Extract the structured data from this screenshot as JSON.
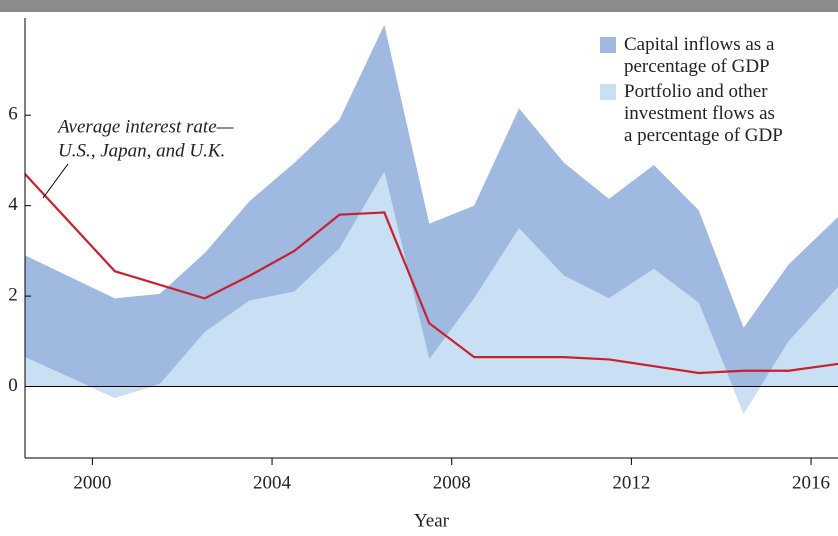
{
  "chart_data": {
    "type": "area",
    "x": [
      1998.5,
      2000.5,
      2001.5,
      2002.5,
      2003.5,
      2004.5,
      2005.5,
      2006.5,
      2007.5,
      2008.5,
      2009.5,
      2010.5,
      2011.5,
      2012.5,
      2013.5,
      2014.5,
      2015.5,
      2016.6
    ],
    "series": [
      {
        "name": "Capital inflows as a percentage of GDP",
        "color": "#a0b9e1",
        "values": [
          2.9,
          1.95,
          2.05,
          2.95,
          4.1,
          4.95,
          5.9,
          8.0,
          3.6,
          4.0,
          6.15,
          4.95,
          4.15,
          4.9,
          3.9,
          1.3,
          2.7,
          3.75
        ]
      },
      {
        "name": "Portfolio and other investment flows as a percentage of GDP",
        "color": "#c9dff3",
        "values": [
          0.65,
          -0.25,
          0.05,
          1.2,
          1.9,
          2.1,
          3.05,
          4.75,
          0.6,
          1.95,
          3.5,
          2.45,
          1.95,
          2.6,
          1.85,
          -0.6,
          1.0,
          2.2
        ]
      },
      {
        "name": "Average interest rate—U.S., Japan, and U.K.",
        "color": "#c8202e",
        "type": "line",
        "values": [
          4.7,
          2.55,
          2.25,
          1.95,
          2.45,
          3.0,
          3.8,
          3.85,
          1.4,
          0.65,
          0.65,
          0.65,
          0.6,
          0.45,
          0.3,
          0.35,
          0.35,
          0.5
        ]
      }
    ],
    "annotation": [
      "Average interest rate—",
      "U.S., Japan, and U.K."
    ],
    "xlabel": "Year",
    "xlim": [
      1998.5,
      2016.6
    ],
    "xticks": [
      2000,
      2004,
      2008,
      2012,
      2016
    ],
    "ylim": [
      -1.58,
      8.15
    ],
    "yticks": [
      0,
      2,
      4,
      6
    ],
    "legend": "upper-right"
  }
}
